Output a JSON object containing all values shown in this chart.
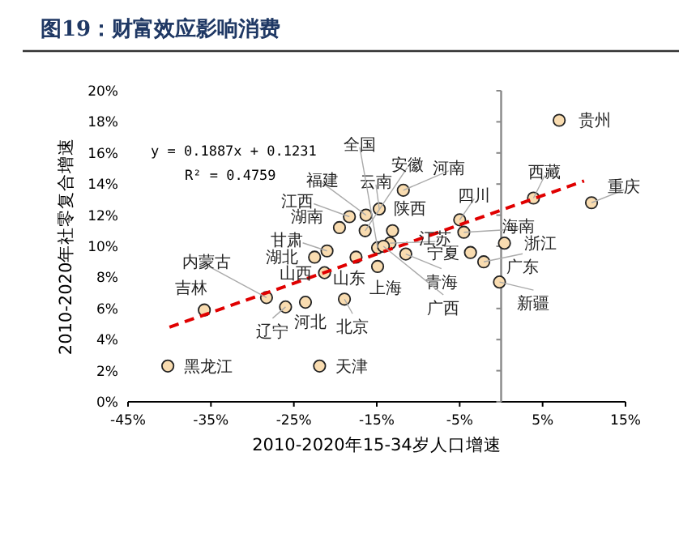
{
  "chart_data": {
    "type": "scatter",
    "title": "图19：财富效应影响消费",
    "xlabel": "2010-2020年15-34岁人口增速",
    "ylabel": "2010-2020年社零复合增速",
    "xlim": [
      -45,
      15
    ],
    "xticks": [
      {
        "value": -45,
        "label": "-45%"
      },
      {
        "value": -35,
        "label": "-35%"
      },
      {
        "value": -25,
        "label": "-25%"
      },
      {
        "value": -15,
        "label": "-15%"
      },
      {
        "value": -5,
        "label": "-5%"
      },
      {
        "value": 5,
        "label": "5%"
      },
      {
        "value": 15,
        "label": "15%"
      }
    ],
    "ylim": [
      0,
      20
    ],
    "yticks": [
      {
        "value": 0,
        "label": "0%"
      },
      {
        "value": 2,
        "label": "2%"
      },
      {
        "value": 4,
        "label": "4%"
      },
      {
        "value": 6,
        "label": "6%"
      },
      {
        "value": 8,
        "label": "8%"
      },
      {
        "value": 10,
        "label": "10%"
      },
      {
        "value": 12,
        "label": "12%"
      },
      {
        "value": 14,
        "label": "14%"
      },
      {
        "value": 16,
        "label": "16%"
      },
      {
        "value": 18,
        "label": "18%"
      },
      {
        "value": 20,
        "label": "20%"
      }
    ],
    "grid": false,
    "series": [
      {
        "color": "#f9dcb0",
        "marker": "circle",
        "x": [
          -40.2,
          -35.8,
          -28.3,
          -26.0,
          -23.6,
          -21.9,
          -22.5,
          -21.0,
          -21.3,
          -19.5,
          -18.9,
          -18.3,
          -16.3,
          -11.8,
          -14.7,
          -16.4,
          -13.1,
          -13.4,
          -14.9,
          -17.5,
          -11.5,
          -14.9,
          -14.2,
          7.0,
          3.9,
          10.9,
          -5.0,
          -4.5,
          0.4,
          -3.7,
          -2.1,
          -0.2
        ],
        "values": [
          2.3,
          5.9,
          6.7,
          6.1,
          6.4,
          2.3,
          9.3,
          9.7,
          8.3,
          11.2,
          6.6,
          11.9,
          12.0,
          13.6,
          12.4,
          11.0,
          11.0,
          10.2,
          9.9,
          9.3,
          9.5,
          8.7,
          10.0,
          18.1,
          13.1,
          12.8,
          11.7,
          10.9,
          10.2,
          9.6,
          9.0,
          7.7
        ]
      },
      {
        "type": "line",
        "color": "#e00000",
        "line_style": "dashed",
        "marker": "none",
        "x": [
          -40,
          10
        ],
        "values": [
          4.8,
          14.2
        ]
      }
    ],
    "annotations": [
      {
        "text": "黑龙江",
        "x": -40.2,
        "y": 2.3
      },
      {
        "text": "吉林",
        "x": -35.8,
        "y": 5.9
      },
      {
        "text": "内蒙古",
        "x": -28.3,
        "y": 6.7
      },
      {
        "text": "辽宁",
        "x": -26.0,
        "y": 6.1
      },
      {
        "text": "河北",
        "x": -23.6,
        "y": 6.4
      },
      {
        "text": "天津",
        "x": -21.9,
        "y": 2.3
      },
      {
        "text": "湖北",
        "x": -22.5,
        "y": 9.3
      },
      {
        "text": "甘肃",
        "x": -21.0,
        "y": 9.7
      },
      {
        "text": "山西",
        "x": -21.3,
        "y": 8.3
      },
      {
        "text": "湖南",
        "x": -19.5,
        "y": 11.2
      },
      {
        "text": "北京",
        "x": -18.9,
        "y": 6.6
      },
      {
        "text": "江西",
        "x": -18.3,
        "y": 11.9
      },
      {
        "text": "福建",
        "x": -16.3,
        "y": 12.0
      },
      {
        "text": "河南",
        "x": -11.8,
        "y": 13.6
      },
      {
        "text": "云南",
        "x": -14.7,
        "y": 12.4
      },
      {
        "text": "安徽",
        "x": -16.4,
        "y": 11.0
      },
      {
        "text": "陕西",
        "x": -13.1,
        "y": 11.0
      },
      {
        "text": "江苏",
        "x": -13.4,
        "y": 10.2
      },
      {
        "text": "全国",
        "x": -14.9,
        "y": 9.9
      },
      {
        "text": "山东",
        "x": -17.5,
        "y": 9.3
      },
      {
        "text": "青海",
        "x": -11.5,
        "y": 9.5
      },
      {
        "text": "上海",
        "x": -14.9,
        "y": 8.7
      },
      {
        "text": "广西",
        "x": -14.2,
        "y": 10.0
      },
      {
        "text": "贵州",
        "x": 7.0,
        "y": 18.1
      },
      {
        "text": "西藏",
        "x": 3.9,
        "y": 13.1
      },
      {
        "text": "重庆",
        "x": 10.9,
        "y": 12.8
      },
      {
        "text": "四川",
        "x": -5.0,
        "y": 11.7
      },
      {
        "text": "海南",
        "x": -4.5,
        "y": 10.9
      },
      {
        "text": "浙江",
        "x": 0.4,
        "y": 10.2
      },
      {
        "text": "宁夏",
        "x": -3.7,
        "y": 9.6
      },
      {
        "text": "广东",
        "x": -2.1,
        "y": 9.0
      },
      {
        "text": "新疆",
        "x": -0.2,
        "y": 7.7
      },
      "y = 0.1887x + 0.1231",
      "R² = 0.4759"
    ]
  }
}
